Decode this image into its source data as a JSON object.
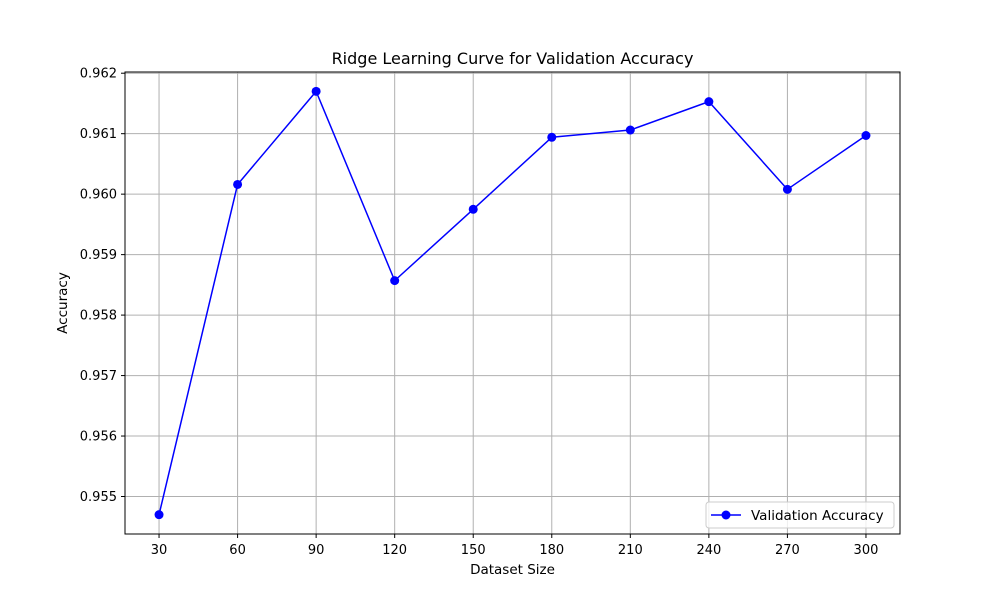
{
  "chart_data": {
    "type": "line",
    "title": "Ridge Learning Curve for Validation Accuracy",
    "xlabel": "Dataset Size",
    "ylabel": "Accuracy",
    "x": [
      30,
      60,
      90,
      120,
      150,
      180,
      210,
      240,
      270,
      300
    ],
    "xticks": [
      "30",
      "60",
      "90",
      "120",
      "150",
      "180",
      "210",
      "240",
      "270",
      "300"
    ],
    "yticks": [
      "0.955",
      "0.956",
      "0.957",
      "0.958",
      "0.959",
      "0.960",
      "0.961",
      "0.962"
    ],
    "ytick_values": [
      0.955,
      0.956,
      0.957,
      0.958,
      0.959,
      0.96,
      0.961,
      0.962
    ],
    "xlim": [
      17,
      313
    ],
    "ylim": [
      0.95438,
      0.96202
    ],
    "grid": true,
    "legend_position": "lower-right",
    "series": [
      {
        "name": "Validation Accuracy",
        "color": "#0000ff",
        "marker": "circle",
        "values": [
          0.9547,
          0.96016,
          0.9617,
          0.95857,
          0.95975,
          0.96094,
          0.96106,
          0.96153,
          0.96008,
          0.96097
        ]
      }
    ]
  }
}
